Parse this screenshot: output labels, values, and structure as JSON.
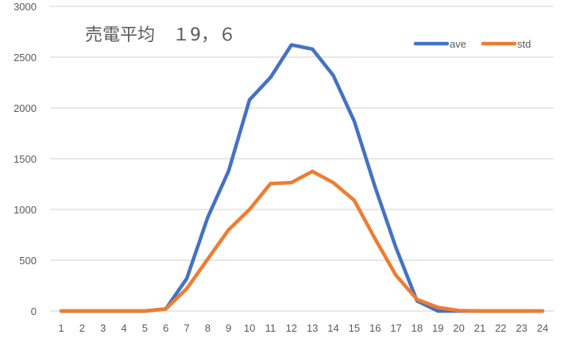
{
  "chart_data": {
    "type": "line",
    "title": "売電平均　１9，６",
    "xlabel": "",
    "ylabel": "",
    "categories": [
      "1",
      "2",
      "3",
      "4",
      "5",
      "6",
      "7",
      "8",
      "9",
      "10",
      "11",
      "12",
      "13",
      "14",
      "15",
      "16",
      "17",
      "18",
      "19",
      "20",
      "21",
      "22",
      "23",
      "24"
    ],
    "series": [
      {
        "name": "ave",
        "color": "#4472C4",
        "values": [
          0,
          0,
          0,
          0,
          0,
          20,
          320,
          920,
          1380,
          2080,
          2300,
          2620,
          2580,
          2320,
          1870,
          1220,
          620,
          100,
          0,
          0,
          0,
          0,
          0,
          0
        ]
      },
      {
        "name": "std",
        "color": "#ED7D31",
        "values": [
          0,
          0,
          0,
          0,
          0,
          20,
          220,
          510,
          800,
          1000,
          1255,
          1265,
          1375,
          1265,
          1090,
          710,
          350,
          115,
          35,
          5,
          0,
          0,
          0,
          0
        ]
      }
    ],
    "ylim": [
      0,
      3000
    ],
    "yticks": [
      0,
      500,
      1000,
      1500,
      2000,
      2500,
      3000
    ],
    "grid": true,
    "legend_position": "top-right"
  },
  "colors": {
    "grid": "#D9D9D9",
    "text": "#595959",
    "background": "#FFFFFF"
  }
}
